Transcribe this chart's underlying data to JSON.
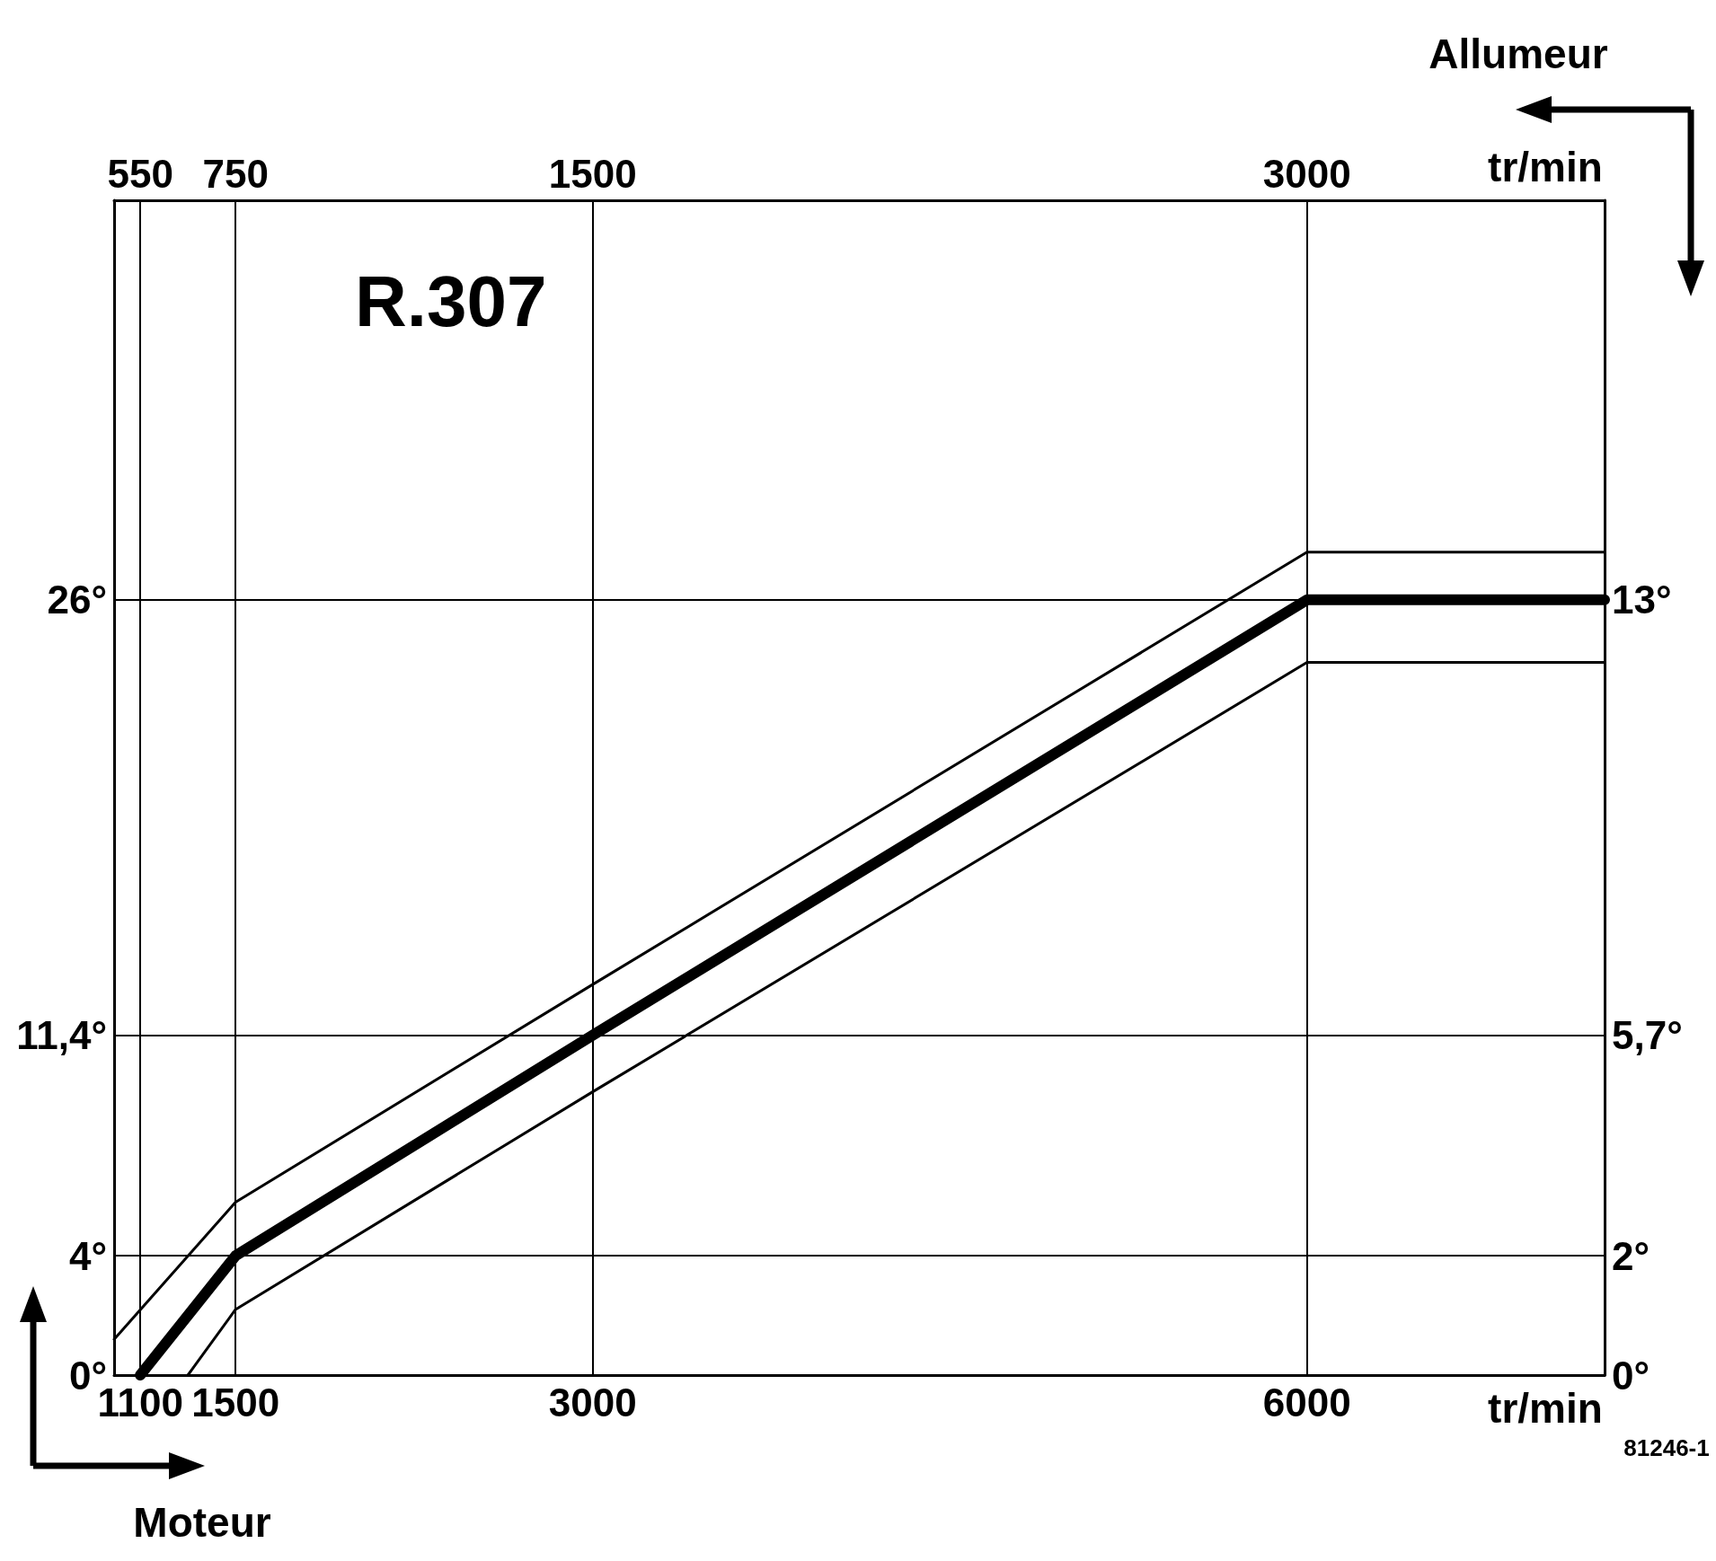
{
  "chart_data": {
    "type": "line",
    "title": "R.307",
    "xlabel": "tr/min",
    "x2label": "tr/min",
    "annotations": [
      "Allumeur",
      "Moteur",
      "81246-1"
    ],
    "xlim": [
      990,
      7250
    ],
    "xticks": [
      1100,
      1500,
      3000,
      6000
    ],
    "x2lim": [
      495,
      3625
    ],
    "x2ticks": [
      550,
      750,
      1500,
      3000
    ],
    "ylim": [
      0,
      39.4
    ],
    "yticks": [
      {
        "value": 0,
        "label": "0°"
      },
      {
        "value": 4,
        "label": "4°"
      },
      {
        "value": 11.4,
        "label": "11,4°"
      },
      {
        "value": 26,
        "label": "26°"
      }
    ],
    "y2lim": [
      0,
      19.7
    ],
    "y2ticks": [
      {
        "value": 0,
        "label": "0°"
      },
      {
        "value": 2,
        "label": "2°"
      },
      {
        "value": 5.7,
        "label": "5,7°"
      },
      {
        "value": 13,
        "label": "13°"
      }
    ],
    "grid": true,
    "marker": "none",
    "line_style": "solid",
    "series": [
      {
        "color": "#000000",
        "x": [
          1100,
          1500,
          3000,
          6000,
          7250
        ],
        "values": [
          0,
          4,
          11.4,
          26,
          26
        ]
      },
      {
        "color": "#000000",
        "x": [
          990,
          1500,
          3000,
          6000,
          7250
        ],
        "values": [
          1.2,
          5.8,
          13.1,
          27.6,
          27.6
        ]
      },
      {
        "color": "#000000",
        "x": [
          1300,
          1500,
          3000,
          6000,
          7250
        ],
        "values": [
          0,
          2.2,
          9.5,
          23.9,
          23.9
        ]
      }
    ]
  }
}
